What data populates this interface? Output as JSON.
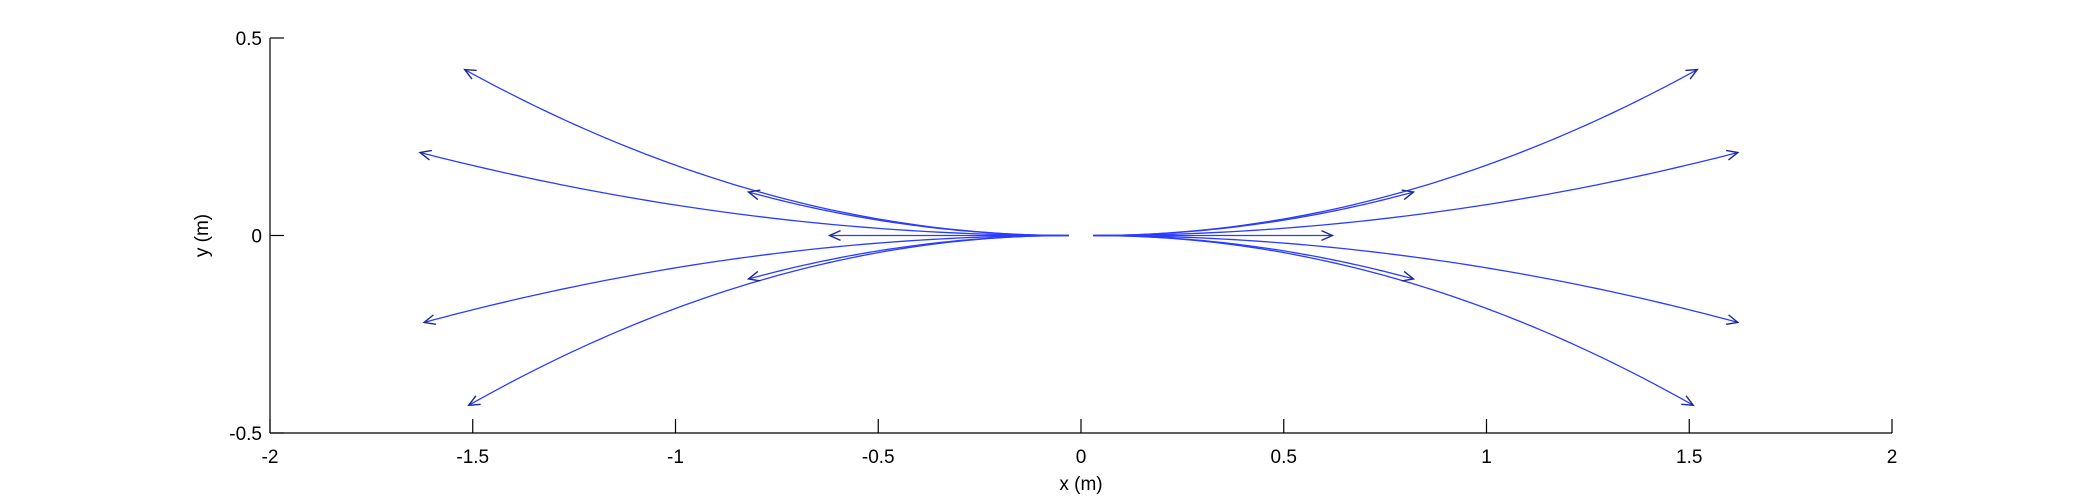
{
  "chart_data": {
    "type": "line",
    "title": "",
    "xlabel": "x (m)",
    "ylabel": "y (m)",
    "xlim": [
      -2,
      2
    ],
    "ylim": [
      -0.5,
      0.5
    ],
    "xticks": [
      -2,
      -1.5,
      -1,
      -0.5,
      0,
      0.5,
      1,
      1.5,
      2
    ],
    "xtick_labels": [
      "-2",
      "-1.5",
      "-1",
      "-0.5",
      "0",
      "0.5",
      "1",
      "1.5",
      "2"
    ],
    "yticks": [
      -0.5,
      0,
      0.5
    ],
    "ytick_labels": [
      "-0.5",
      "0",
      "0.5"
    ],
    "grid": false,
    "box": "bottom-left axes only",
    "line_color": "#2b3cff",
    "arrow_color": "#1a2a8c",
    "series": [
      {
        "start": [
          -0.03,
          0.0
        ],
        "end": [
          -1.52,
          0.42
        ]
      },
      {
        "start": [
          -0.03,
          0.0
        ],
        "end": [
          -1.63,
          0.21
        ]
      },
      {
        "start": [
          -0.03,
          0.0
        ],
        "end": [
          -1.62,
          -0.22
        ]
      },
      {
        "start": [
          -0.03,
          0.0
        ],
        "end": [
          -1.51,
          -0.43
        ]
      },
      {
        "start": [
          -0.03,
          0.0
        ],
        "end": [
          -0.82,
          0.11
        ]
      },
      {
        "start": [
          -0.03,
          0.0
        ],
        "end": [
          -0.62,
          0.0
        ]
      },
      {
        "start": [
          -0.03,
          0.0
        ],
        "end": [
          -0.82,
          -0.11
        ]
      },
      {
        "start": [
          0.03,
          0.0
        ],
        "end": [
          1.52,
          0.42
        ]
      },
      {
        "start": [
          0.03,
          0.0
        ],
        "end": [
          1.62,
          0.21
        ]
      },
      {
        "start": [
          0.03,
          0.0
        ],
        "end": [
          1.62,
          -0.22
        ]
      },
      {
        "start": [
          0.03,
          0.0
        ],
        "end": [
          1.51,
          -0.43
        ]
      },
      {
        "start": [
          0.03,
          0.0
        ],
        "end": [
          0.82,
          0.11
        ]
      },
      {
        "start": [
          0.03,
          0.0
        ],
        "end": [
          0.62,
          0.0
        ]
      },
      {
        "start": [
          0.03,
          0.0
        ],
        "end": [
          0.82,
          -0.11
        ]
      }
    ]
  }
}
